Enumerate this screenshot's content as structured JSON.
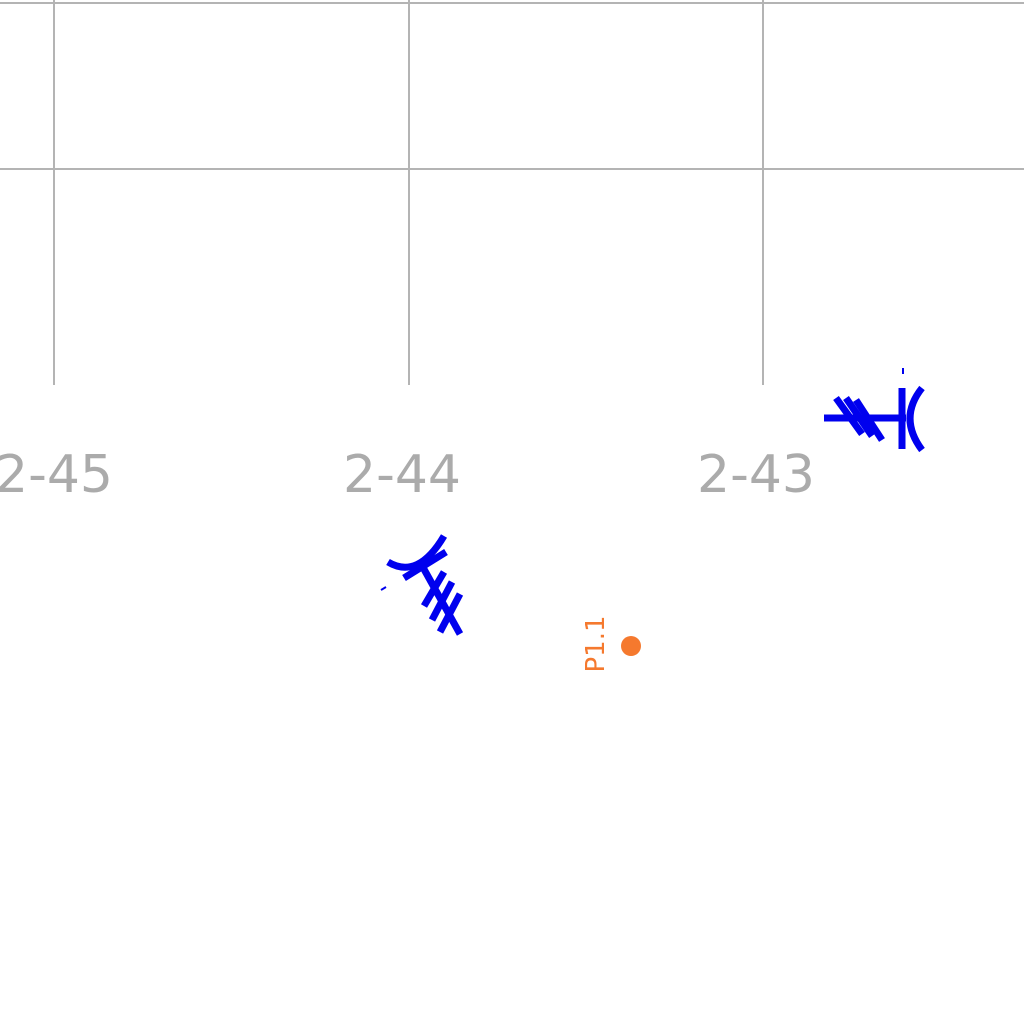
{
  "map": {
    "grid_labels": [
      "2-45",
      "2-44",
      "2-43"
    ],
    "survey_point": {
      "label": "P1.1",
      "color": "#f5792e"
    },
    "colors": {
      "grid": "#b4b4b4",
      "grid_label": "#ababab",
      "symbol": "#0000ee",
      "background": "#ffffff"
    },
    "symbol_icons": [
      "fish-hook-symbol-icon",
      "fish-hook-symbol-icon"
    ]
  }
}
